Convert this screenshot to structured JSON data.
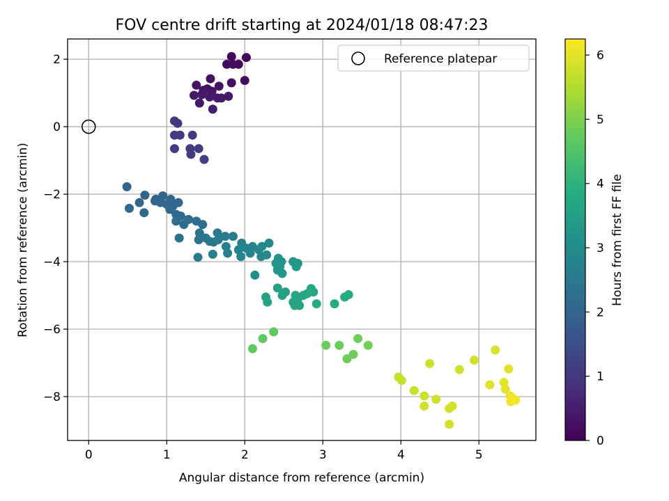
{
  "chart_data": {
    "type": "scatter",
    "title": "FOV centre drift starting at 2024/01/18 08:47:23",
    "xlabel": "Angular distance from reference (arcmin)",
    "ylabel": "Rotation from reference (arcmin)",
    "colorbar_label": "Hours from first FF file",
    "xlim": [
      -0.27,
      5.73
    ],
    "ylim": [
      -9.3,
      2.6
    ],
    "x_ticks": [
      0,
      1,
      2,
      3,
      4,
      5
    ],
    "y_ticks": [
      2,
      0,
      -2,
      -4,
      -6,
      -8
    ],
    "colorbar_range": [
      0,
      6.25
    ],
    "colorbar_ticks": [
      0,
      1,
      2,
      3,
      4,
      5,
      6
    ],
    "colormap": "viridis",
    "grid": true,
    "legend": {
      "position": "top-right",
      "label": "Reference platepar"
    },
    "reference_point": {
      "x": 0,
      "y": 0
    },
    "points": [
      {
        "x": 1.83,
        "y": 2.08,
        "c": 0.1
      },
      {
        "x": 2.02,
        "y": 2.05,
        "c": 0.1
      },
      {
        "x": 1.92,
        "y": 1.85,
        "c": 0.15
      },
      {
        "x": 1.77,
        "y": 1.85,
        "c": 0.2
      },
      {
        "x": 1.85,
        "y": 1.85,
        "c": 0.18
      },
      {
        "x": 1.56,
        "y": 1.42,
        "c": 0.3
      },
      {
        "x": 2.0,
        "y": 1.37,
        "c": 0.22
      },
      {
        "x": 1.83,
        "y": 1.3,
        "c": 0.25
      },
      {
        "x": 1.38,
        "y": 1.23,
        "c": 0.35
      },
      {
        "x": 1.52,
        "y": 1.12,
        "c": 0.35
      },
      {
        "x": 1.67,
        "y": 1.2,
        "c": 0.35
      },
      {
        "x": 1.47,
        "y": 1.08,
        "c": 0.38
      },
      {
        "x": 1.58,
        "y": 1.05,
        "c": 0.38
      },
      {
        "x": 1.45,
        "y": 0.95,
        "c": 0.4
      },
      {
        "x": 1.35,
        "y": 0.93,
        "c": 0.4
      },
      {
        "x": 1.55,
        "y": 0.88,
        "c": 0.42
      },
      {
        "x": 1.65,
        "y": 0.85,
        "c": 0.42
      },
      {
        "x": 1.7,
        "y": 0.85,
        "c": 0.42
      },
      {
        "x": 1.79,
        "y": 0.9,
        "c": 0.4
      },
      {
        "x": 1.42,
        "y": 0.7,
        "c": 0.45
      },
      {
        "x": 1.59,
        "y": 0.52,
        "c": 0.48
      },
      {
        "x": 1.1,
        "y": 0.17,
        "c": 1.0
      },
      {
        "x": 1.14,
        "y": 0.1,
        "c": 1.0
      },
      {
        "x": 1.1,
        "y": -0.25,
        "c": 1.05
      },
      {
        "x": 1.17,
        "y": -0.25,
        "c": 1.05
      },
      {
        "x": 1.33,
        "y": -0.25,
        "c": 1.05
      },
      {
        "x": 1.1,
        "y": -0.65,
        "c": 1.1
      },
      {
        "x": 1.3,
        "y": -0.65,
        "c": 1.1
      },
      {
        "x": 1.41,
        "y": -0.65,
        "c": 1.1
      },
      {
        "x": 1.31,
        "y": -0.82,
        "c": 1.12
      },
      {
        "x": 1.48,
        "y": -0.97,
        "c": 1.15
      },
      {
        "x": 0.49,
        "y": -1.78,
        "c": 2.0
      },
      {
        "x": 0.72,
        "y": -2.03,
        "c": 2.0
      },
      {
        "x": 0.86,
        "y": -2.15,
        "c": 2.0
      },
      {
        "x": 0.95,
        "y": -2.05,
        "c": 2.0
      },
      {
        "x": 1.05,
        "y": -2.15,
        "c": 2.05
      },
      {
        "x": 0.65,
        "y": -2.25,
        "c": 2.05
      },
      {
        "x": 0.85,
        "y": -2.2,
        "c": 2.05
      },
      {
        "x": 0.92,
        "y": -2.25,
        "c": 2.05
      },
      {
        "x": 1.0,
        "y": -2.3,
        "c": 2.08
      },
      {
        "x": 1.08,
        "y": -2.35,
        "c": 2.08
      },
      {
        "x": 1.15,
        "y": -2.25,
        "c": 2.08
      },
      {
        "x": 0.52,
        "y": -2.42,
        "c": 2.1
      },
      {
        "x": 1.04,
        "y": -2.45,
        "c": 2.1
      },
      {
        "x": 0.71,
        "y": -2.55,
        "c": 2.1
      },
      {
        "x": 1.12,
        "y": -2.6,
        "c": 2.15
      },
      {
        "x": 1.18,
        "y": -2.65,
        "c": 2.15
      },
      {
        "x": 1.28,
        "y": -2.75,
        "c": 2.2
      },
      {
        "x": 1.12,
        "y": -2.8,
        "c": 2.2
      },
      {
        "x": 1.22,
        "y": -2.9,
        "c": 2.25
      },
      {
        "x": 1.38,
        "y": -2.8,
        "c": 2.25
      },
      {
        "x": 1.46,
        "y": -2.9,
        "c": 2.25
      },
      {
        "x": 1.42,
        "y": -3.15,
        "c": 2.4
      },
      {
        "x": 1.41,
        "y": -3.35,
        "c": 2.45
      },
      {
        "x": 1.5,
        "y": -3.3,
        "c": 2.45
      },
      {
        "x": 1.16,
        "y": -3.3,
        "c": 2.3
      },
      {
        "x": 1.55,
        "y": -3.4,
        "c": 2.5
      },
      {
        "x": 1.6,
        "y": -3.42,
        "c": 2.5
      },
      {
        "x": 1.65,
        "y": -3.15,
        "c": 2.55
      },
      {
        "x": 1.75,
        "y": -3.25,
        "c": 2.55
      },
      {
        "x": 1.85,
        "y": -3.25,
        "c": 2.6
      },
      {
        "x": 1.66,
        "y": -3.35,
        "c": 2.6
      },
      {
        "x": 1.76,
        "y": -3.55,
        "c": 2.7
      },
      {
        "x": 1.78,
        "y": -3.75,
        "c": 2.7
      },
      {
        "x": 1.59,
        "y": -3.78,
        "c": 2.65
      },
      {
        "x": 1.4,
        "y": -3.87,
        "c": 2.55
      },
      {
        "x": 1.96,
        "y": -3.45,
        "c": 2.75
      },
      {
        "x": 1.92,
        "y": -3.65,
        "c": 2.75
      },
      {
        "x": 2.02,
        "y": -3.6,
        "c": 2.8
      },
      {
        "x": 2.1,
        "y": -3.55,
        "c": 2.8
      },
      {
        "x": 2.07,
        "y": -3.75,
        "c": 2.8
      },
      {
        "x": 2.18,
        "y": -3.65,
        "c": 2.85
      },
      {
        "x": 1.95,
        "y": -3.85,
        "c": 2.85
      },
      {
        "x": 2.21,
        "y": -3.85,
        "c": 2.9
      },
      {
        "x": 2.28,
        "y": -3.8,
        "c": 2.9
      },
      {
        "x": 2.31,
        "y": -3.45,
        "c": 2.9
      },
      {
        "x": 2.22,
        "y": -3.55,
        "c": 2.9
      },
      {
        "x": 2.13,
        "y": -4.4,
        "c": 3.1
      },
      {
        "x": 2.43,
        "y": -3.9,
        "c": 3.2
      },
      {
        "x": 2.47,
        "y": -4.0,
        "c": 3.2
      },
      {
        "x": 2.4,
        "y": -4.05,
        "c": 3.2
      },
      {
        "x": 2.45,
        "y": -4.15,
        "c": 3.25
      },
      {
        "x": 2.42,
        "y": -4.25,
        "c": 3.25
      },
      {
        "x": 2.48,
        "y": -4.35,
        "c": 3.3
      },
      {
        "x": 2.62,
        "y": -4.0,
        "c": 3.3
      },
      {
        "x": 2.68,
        "y": -4.05,
        "c": 3.3
      },
      {
        "x": 2.66,
        "y": -4.15,
        "c": 3.35
      },
      {
        "x": 2.42,
        "y": -4.78,
        "c": 3.5
      },
      {
        "x": 2.52,
        "y": -4.9,
        "c": 3.55
      },
      {
        "x": 2.48,
        "y": -5.0,
        "c": 3.6
      },
      {
        "x": 2.27,
        "y": -5.05,
        "c": 3.55
      },
      {
        "x": 2.29,
        "y": -5.2,
        "c": 3.6
      },
      {
        "x": 2.65,
        "y": -5.0,
        "c": 3.6
      },
      {
        "x": 2.68,
        "y": -5.1,
        "c": 3.65
      },
      {
        "x": 2.62,
        "y": -5.2,
        "c": 3.65
      },
      {
        "x": 2.64,
        "y": -5.3,
        "c": 3.65
      },
      {
        "x": 2.7,
        "y": -5.3,
        "c": 3.65
      },
      {
        "x": 2.75,
        "y": -5.0,
        "c": 3.7
      },
      {
        "x": 2.8,
        "y": -4.95,
        "c": 3.7
      },
      {
        "x": 2.85,
        "y": -4.8,
        "c": 3.7
      },
      {
        "x": 2.88,
        "y": -4.9,
        "c": 3.75
      },
      {
        "x": 2.92,
        "y": -5.25,
        "c": 3.8
      },
      {
        "x": 3.15,
        "y": -5.25,
        "c": 3.8
      },
      {
        "x": 3.28,
        "y": -5.05,
        "c": 3.85
      },
      {
        "x": 3.33,
        "y": -4.98,
        "c": 3.85
      },
      {
        "x": 2.1,
        "y": -6.58,
        "c": 4.7
      },
      {
        "x": 2.23,
        "y": -6.28,
        "c": 4.7
      },
      {
        "x": 2.37,
        "y": -6.08,
        "c": 4.7
      },
      {
        "x": 3.04,
        "y": -6.48,
        "c": 4.8
      },
      {
        "x": 3.21,
        "y": -6.48,
        "c": 4.8
      },
      {
        "x": 3.31,
        "y": -6.88,
        "c": 4.85
      },
      {
        "x": 3.39,
        "y": -6.75,
        "c": 4.85
      },
      {
        "x": 3.45,
        "y": -6.28,
        "c": 4.85
      },
      {
        "x": 3.58,
        "y": -6.48,
        "c": 4.9
      },
      {
        "x": 3.97,
        "y": -7.42,
        "c": 5.7
      },
      {
        "x": 4.01,
        "y": -7.52,
        "c": 5.7
      },
      {
        "x": 4.17,
        "y": -7.82,
        "c": 5.75
      },
      {
        "x": 4.3,
        "y": -7.98,
        "c": 5.75
      },
      {
        "x": 4.3,
        "y": -8.28,
        "c": 5.8
      },
      {
        "x": 4.37,
        "y": -7.02,
        "c": 5.75
      },
      {
        "x": 4.45,
        "y": -8.08,
        "c": 5.8
      },
      {
        "x": 4.62,
        "y": -8.35,
        "c": 5.85
      },
      {
        "x": 4.66,
        "y": -8.28,
        "c": 5.85
      },
      {
        "x": 4.62,
        "y": -8.82,
        "c": 5.85
      },
      {
        "x": 4.75,
        "y": -7.2,
        "c": 5.8
      },
      {
        "x": 4.94,
        "y": -6.92,
        "c": 5.85
      },
      {
        "x": 5.14,
        "y": -7.65,
        "c": 5.95
      },
      {
        "x": 5.21,
        "y": -6.62,
        "c": 5.9
      },
      {
        "x": 5.32,
        "y": -7.58,
        "c": 6.0
      },
      {
        "x": 5.34,
        "y": -7.78,
        "c": 6.0
      },
      {
        "x": 5.38,
        "y": -7.18,
        "c": 6.0
      },
      {
        "x": 5.4,
        "y": -7.98,
        "c": 6.05
      },
      {
        "x": 5.41,
        "y": -8.15,
        "c": 6.1
      },
      {
        "x": 5.43,
        "y": -8.05,
        "c": 6.1
      },
      {
        "x": 5.47,
        "y": -8.1,
        "c": 6.15
      }
    ]
  }
}
